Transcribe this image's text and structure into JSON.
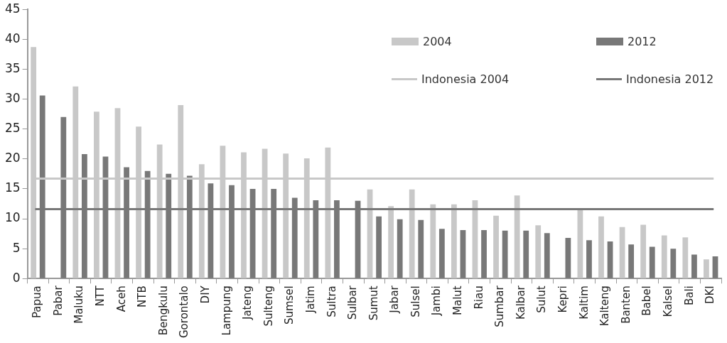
{
  "chart_data": {
    "type": "bar",
    "categories": [
      "Papua",
      "Pabar",
      "Maluku",
      "NTT",
      "Aceh",
      "NTB",
      "Bengkulu",
      "Gorontalo",
      "DIY",
      "Lampung",
      "Jateng",
      "Sulteng",
      "Sumsel",
      "Jatim",
      "Sultra",
      "Sulbar",
      "Sumut",
      "Jabar",
      "Sulsel",
      "Jambi",
      "Malut",
      "Riau",
      "Sumbar",
      "Kalbar",
      "Sulut",
      "Kepri",
      "Kaltim",
      "Kalteng",
      "Banten",
      "Babel",
      "Kalsel",
      "Bali",
      "DKI"
    ],
    "series": [
      {
        "name": "2004",
        "color": "#c8c8c8",
        "values": [
          38.7,
          null,
          32.1,
          27.9,
          28.5,
          25.4,
          22.4,
          29.0,
          19.1,
          22.2,
          21.1,
          21.7,
          20.9,
          20.1,
          21.9,
          null,
          14.9,
          12.1,
          14.9,
          12.4,
          12.4,
          13.1,
          10.5,
          13.9,
          8.9,
          null,
          11.6,
          10.4,
          8.6,
          9.0,
          7.2,
          6.9,
          3.2
        ]
      },
      {
        "name": "2012",
        "color": "#787878",
        "values": [
          30.6,
          27.0,
          20.8,
          20.4,
          18.6,
          18.0,
          17.5,
          17.2,
          15.9,
          15.6,
          15.0,
          15.0,
          13.5,
          13.1,
          13.1,
          13.0,
          10.4,
          9.9,
          9.8,
          8.3,
          8.1,
          8.1,
          8.0,
          8.0,
          7.6,
          6.8,
          6.4,
          6.2,
          5.7,
          5.3,
          5.0,
          4.0,
          3.7
        ]
      }
    ],
    "ref_lines": [
      {
        "axis": "y",
        "value": 16.7,
        "label": "Indonesia 2004",
        "color": "#c8c8c8"
      },
      {
        "axis": "y",
        "value": 11.6,
        "label": "Indonesia 2012",
        "color": "#787878"
      }
    ],
    "ylim": [
      0,
      45
    ],
    "yticks": [
      0,
      5,
      10,
      15,
      20,
      25,
      30,
      35,
      40,
      45
    ],
    "grid": false,
    "legend": "top right"
  }
}
